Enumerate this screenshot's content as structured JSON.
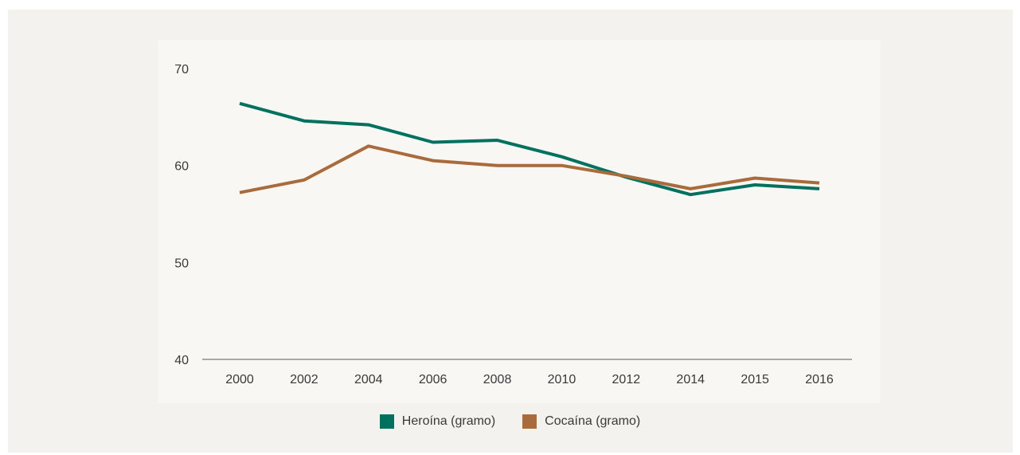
{
  "chart_data": {
    "type": "line",
    "title": "",
    "xlabel": "",
    "ylabel": "",
    "categories": [
      "2000",
      "2002",
      "2004",
      "2006",
      "2008",
      "2010",
      "2012",
      "2014",
      "2015",
      "2016"
    ],
    "ylim": [
      40,
      70
    ],
    "yticks": [
      "70",
      "60",
      "50",
      "40"
    ],
    "grid": false,
    "legend_position": "bottom",
    "series": [
      {
        "name": "Heroína (gramo)",
        "color": "#00705f",
        "values": [
          66.4,
          64.6,
          64.2,
          62.4,
          62.6,
          60.9,
          58.8,
          57.0,
          58.0,
          57.6
        ]
      },
      {
        "name": "Cocaína (gramo)",
        "color": "#a96b3c",
        "values": [
          57.2,
          58.5,
          62.0,
          60.5,
          60.0,
          60.0,
          58.9,
          57.6,
          58.7,
          58.2
        ]
      }
    ]
  }
}
